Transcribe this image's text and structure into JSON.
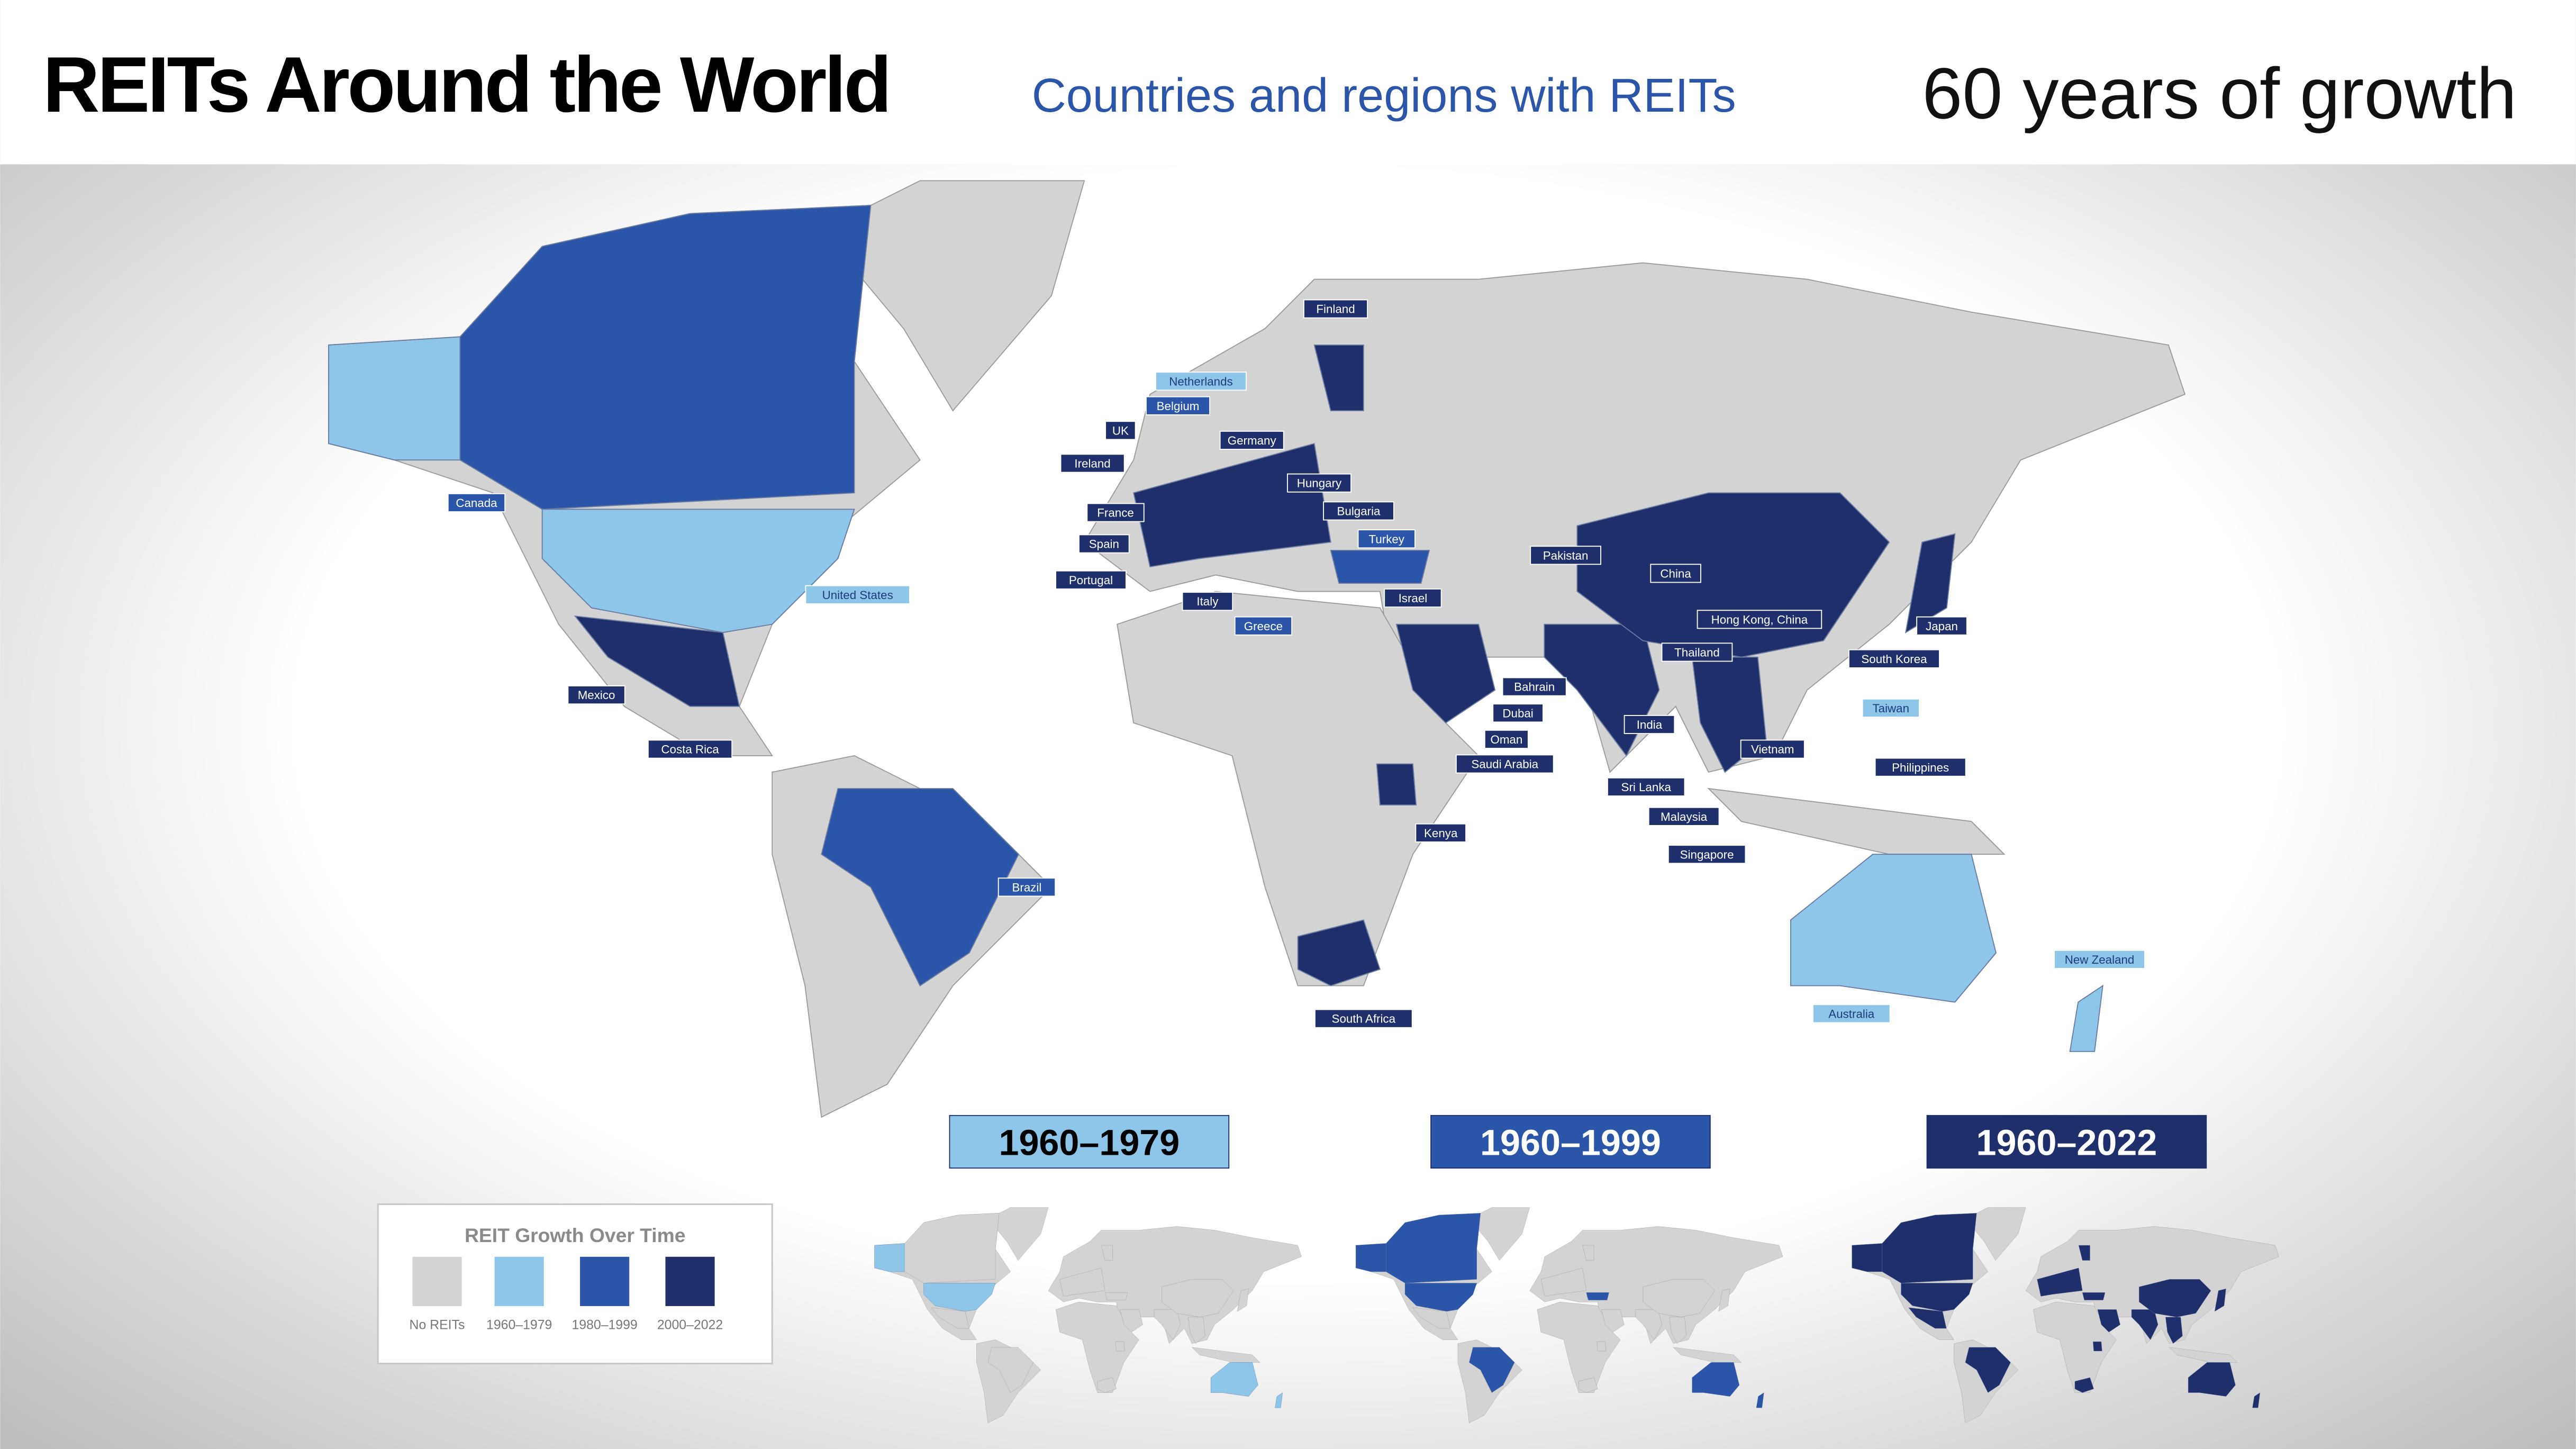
{
  "header": {
    "title": "REITs Around the World",
    "subtitle": "Countries and regions with REITs",
    "tagline": "60 years of growth"
  },
  "legend": {
    "title": "REIT Growth Over Time",
    "items": [
      {
        "label": "No REITs",
        "color": "#d3d3d3"
      },
      {
        "label": "1960–1979",
        "color": "#8ec6ea",
        "countries": [
          "Netherlands",
          "United States",
          "Taiwan",
          "Australia",
          "New Zealand"
        ]
      },
      {
        "label": "1980–1999",
        "color": "#2b55a8",
        "countries": [
          "Canada",
          "Belgium",
          "Brazil",
          "Turkey",
          "Greece"
        ]
      },
      {
        "label": "2000–2022",
        "color": "#1f2f6b",
        "countries": [
          "Finland",
          "UK",
          "Ireland",
          "Germany",
          "Hungary",
          "France",
          "Bulgaria",
          "Spain",
          "Portugal",
          "Italy",
          "Israel",
          "Pakistan",
          "China",
          "Hong Kong, China",
          "Japan",
          "South Korea",
          "Thailand",
          "Bahrain",
          "Dubai",
          "Oman",
          "Saudi Arabia",
          "India",
          "Sri Lanka",
          "Vietnam",
          "Philippines",
          "Malaysia",
          "Singapore",
          "Kenya",
          "South Africa",
          "Mexico",
          "Costa Rica"
        ]
      }
    ]
  },
  "panels": [
    "1960–1979",
    "1960–1999",
    "1960–2022"
  ]
}
